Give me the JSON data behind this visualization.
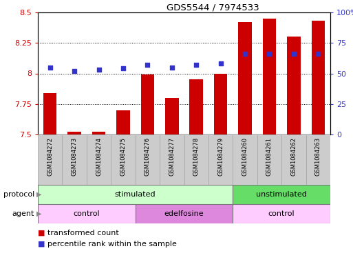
{
  "title": "GDS5544 / 7974533",
  "samples": [
    "GSM1084272",
    "GSM1084273",
    "GSM1084274",
    "GSM1084275",
    "GSM1084276",
    "GSM1084277",
    "GSM1084278",
    "GSM1084279",
    "GSM1084260",
    "GSM1084261",
    "GSM1084262",
    "GSM1084263"
  ],
  "bar_values": [
    7.84,
    7.52,
    7.52,
    7.7,
    7.99,
    7.8,
    7.95,
    8.0,
    8.42,
    8.45,
    8.3,
    8.43
  ],
  "bar_color": "#cc0000",
  "bar_baseline": 7.5,
  "dot_values": [
    55,
    52,
    53,
    54,
    57,
    55,
    57,
    58,
    66,
    66,
    66,
    66
  ],
  "dot_color": "#3333cc",
  "ylim_left": [
    7.5,
    8.5
  ],
  "ylim_right": [
    0,
    100
  ],
  "yticks_left": [
    7.5,
    7.75,
    8.0,
    8.25,
    8.5
  ],
  "yticks_right": [
    0,
    25,
    50,
    75,
    100
  ],
  "ytick_labels_left": [
    "7.5",
    "7.75",
    "8",
    "8.25",
    "8.5"
  ],
  "ytick_labels_right": [
    "0",
    "25",
    "50",
    "75",
    "100%"
  ],
  "protocol_groups": [
    {
      "label": "stimulated",
      "start": 0,
      "end": 7,
      "color": "#ccffcc"
    },
    {
      "label": "unstimulated",
      "start": 8,
      "end": 11,
      "color": "#66dd66"
    }
  ],
  "agent_groups": [
    {
      "label": "control",
      "start": 0,
      "end": 3,
      "color": "#ffccff"
    },
    {
      "label": "edelfosine",
      "start": 4,
      "end": 7,
      "color": "#dd88dd"
    },
    {
      "label": "control",
      "start": 8,
      "end": 11,
      "color": "#ffccff"
    }
  ],
  "legend_items": [
    {
      "label": "transformed count",
      "color": "#cc0000"
    },
    {
      "label": "percentile rank within the sample",
      "color": "#3333cc"
    }
  ],
  "background_color": "#ffffff",
  "protocol_label": "protocol",
  "agent_label": "agent",
  "xtick_cell_color": "#cccccc",
  "xtick_cell_edge_color": "#aaaaaa"
}
